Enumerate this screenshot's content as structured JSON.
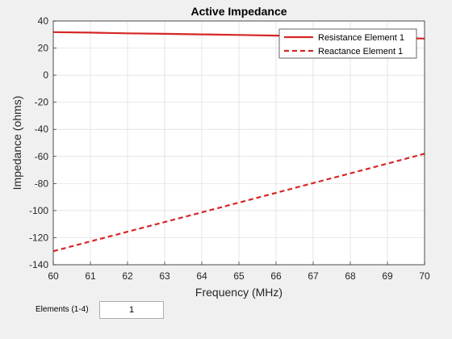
{
  "chart_data": {
    "type": "line",
    "title": "Active Impedance",
    "xlabel": "Frequency (MHz)",
    "ylabel": "Impedance (ohms)",
    "xlim": [
      60,
      70
    ],
    "ylim": [
      -140,
      40
    ],
    "xticks": [
      60,
      61,
      62,
      63,
      64,
      65,
      66,
      67,
      68,
      69,
      70
    ],
    "yticks": [
      40,
      20,
      0,
      -20,
      -40,
      -60,
      -80,
      -100,
      -120,
      -140
    ],
    "grid": true,
    "legend_position": "top-right",
    "series": [
      {
        "name": "Resistance Element 1",
        "style": "solid",
        "color": "#d62626",
        "x": [
          60,
          61,
          62,
          63,
          64,
          65,
          66,
          67,
          68,
          69,
          70
        ],
        "y": [
          31.8,
          31.4,
          30.9,
          30.5,
          30.1,
          29.7,
          29.2,
          28.7,
          28.2,
          27.6,
          27.0
        ]
      },
      {
        "name": "Reactance Element 1",
        "style": "dashed",
        "color": "#d62626",
        "x": [
          60,
          61,
          62,
          63,
          64,
          65,
          66,
          67,
          68,
          69,
          70
        ],
        "y": [
          -130.0,
          -122.8,
          -115.6,
          -108.5,
          -101.3,
          -94.1,
          -86.9,
          -79.7,
          -72.5,
          -65.3,
          -58.0
        ]
      }
    ]
  },
  "controls": {
    "elements_label": "Elements (1-4)",
    "elements_value": "1"
  }
}
